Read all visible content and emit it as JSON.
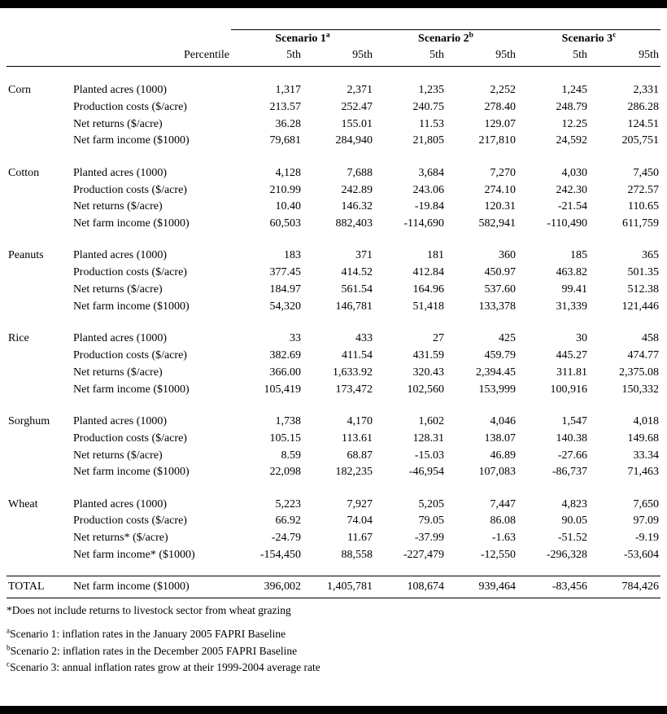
{
  "table": {
    "scenario_headers": [
      {
        "label": "Scenario 1",
        "sup": "a"
      },
      {
        "label": "Scenario 2",
        "sup": "b"
      },
      {
        "label": "Scenario 3",
        "sup": "c"
      }
    ],
    "percentile_label": "Percentile",
    "percentile_cols": [
      "5th",
      "95th",
      "5th",
      "95th",
      "5th",
      "95th"
    ],
    "groups": [
      {
        "crop": "Corn",
        "rows": [
          {
            "metric": "Planted acres (1000)",
            "values": [
              "1,317",
              "2,371",
              "1,235",
              "2,252",
              "1,245",
              "2,331"
            ]
          },
          {
            "metric": "Production costs ($/acre)",
            "values": [
              "213.57",
              "252.47",
              "240.75",
              "278.40",
              "248.79",
              "286.28"
            ]
          },
          {
            "metric": "Net returns ($/acre)",
            "values": [
              "36.28",
              "155.01",
              "11.53",
              "129.07",
              "12.25",
              "124.51"
            ]
          },
          {
            "metric": "Net farm income ($1000)",
            "values": [
              "79,681",
              "284,940",
              "21,805",
              "217,810",
              "24,592",
              "205,751"
            ]
          }
        ]
      },
      {
        "crop": "Cotton",
        "rows": [
          {
            "metric": "Planted acres (1000)",
            "values": [
              "4,128",
              "7,688",
              "3,684",
              "7,270",
              "4,030",
              "7,450"
            ]
          },
          {
            "metric": "Production costs ($/acre)",
            "values": [
              "210.99",
              "242.89",
              "243.06",
              "274.10",
              "242.30",
              "272.57"
            ]
          },
          {
            "metric": "Net returns ($/acre)",
            "values": [
              "10.40",
              "146.32",
              "-19.84",
              "120.31",
              "-21.54",
              "110.65"
            ]
          },
          {
            "metric": "Net farm income ($1000)",
            "values": [
              "60,503",
              "882,403",
              "-114,690",
              "582,941",
              "-110,490",
              "611,759"
            ]
          }
        ]
      },
      {
        "crop": "Peanuts",
        "rows": [
          {
            "metric": "Planted acres (1000)",
            "values": [
              "183",
              "371",
              "181",
              "360",
              "185",
              "365"
            ]
          },
          {
            "metric": "Production costs ($/acre)",
            "values": [
              "377.45",
              "414.52",
              "412.84",
              "450.97",
              "463.82",
              "501.35"
            ]
          },
          {
            "metric": "Net returns ($/acre)",
            "values": [
              "184.97",
              "561.54",
              "164.96",
              "537.60",
              "99.41",
              "512.38"
            ]
          },
          {
            "metric": "Net farm income ($1000)",
            "values": [
              "54,320",
              "146,781",
              "51,418",
              "133,378",
              "31,339",
              "121,446"
            ]
          }
        ]
      },
      {
        "crop": "Rice",
        "rows": [
          {
            "metric": "Planted acres (1000)",
            "values": [
              "33",
              "433",
              "27",
              "425",
              "30",
              "458"
            ]
          },
          {
            "metric": "Production costs ($/acre)",
            "values": [
              "382.69",
              "411.54",
              "431.59",
              "459.79",
              "445.27",
              "474.77"
            ]
          },
          {
            "metric": "Net returns ($/acre)",
            "values": [
              "366.00",
              "1,633.92",
              "320.43",
              "2,394.45",
              "311.81",
              "2,375.08"
            ]
          },
          {
            "metric": "Net farm income ($1000)",
            "values": [
              "105,419",
              "173,472",
              "102,560",
              "153,999",
              "100,916",
              "150,332"
            ]
          }
        ]
      },
      {
        "crop": "Sorghum",
        "rows": [
          {
            "metric": "Planted acres (1000)",
            "values": [
              "1,738",
              "4,170",
              "1,602",
              "4,046",
              "1,547",
              "4,018"
            ]
          },
          {
            "metric": "Production costs ($/acre)",
            "values": [
              "105.15",
              "113.61",
              "128.31",
              "138.07",
              "140.38",
              "149.68"
            ]
          },
          {
            "metric": "Net returns ($/acre)",
            "values": [
              "8.59",
              "68.87",
              "-15.03",
              "46.89",
              "-27.66",
              "33.34"
            ]
          },
          {
            "metric": "Net farm income ($1000)",
            "values": [
              "22,098",
              "182,235",
              "-46,954",
              "107,083",
              "-86,737",
              "71,463"
            ]
          }
        ]
      },
      {
        "crop": "Wheat",
        "rows": [
          {
            "metric": "Planted acres (1000)",
            "values": [
              "5,223",
              "7,927",
              "5,205",
              "7,447",
              "4,823",
              "7,650"
            ]
          },
          {
            "metric": "Production costs ($/acre)",
            "values": [
              "66.92",
              "74.04",
              "79.05",
              "86.08",
              "90.05",
              "97.09"
            ]
          },
          {
            "metric": "Net returns* ($/acre)",
            "values": [
              "-24.79",
              "11.67",
              "-37.99",
              "-1.63",
              "-51.52",
              "-9.19"
            ]
          },
          {
            "metric": "Net farm income* ($1000)",
            "values": [
              "-154,450",
              "88,558",
              "-227,479",
              "-12,550",
              "-296,328",
              "-53,604"
            ]
          }
        ]
      }
    ],
    "total": {
      "crop": "TOTAL",
      "metric": "Net farm income ($1000)",
      "values": [
        "396,002",
        "1,405,781",
        "108,674",
        "939,464",
        "-83,456",
        "784,426"
      ]
    }
  },
  "footnotes": [
    {
      "sup": "",
      "text": "*Does not include returns to livestock sector from wheat grazing"
    },
    {
      "sup": "a",
      "text": "Scenario 1: inflation rates in the January 2005 FAPRI Baseline"
    },
    {
      "sup": "b",
      "text": "Scenario 2: inflation rates in the December 2005 FAPRI Baseline"
    },
    {
      "sup": "c",
      "text": "Scenario 3: annual inflation rates grow at their 1999-2004 average rate"
    }
  ]
}
